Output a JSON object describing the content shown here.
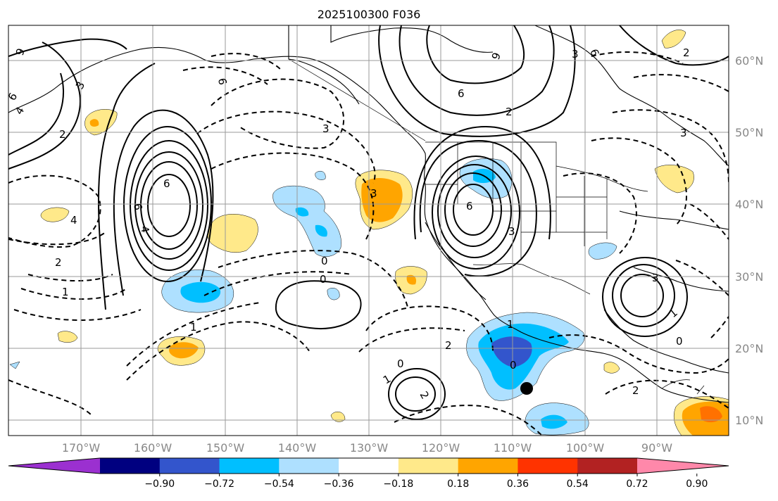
{
  "title": "2025100300 F036",
  "map": {
    "lon_labels": [
      "170°W",
      "160°W",
      "150°W",
      "140°W",
      "130°W",
      "120°W",
      "110°W",
      "100°W",
      "90°W"
    ],
    "lat_labels": [
      "60°N",
      "50°N",
      "40°N",
      "30°N",
      "20°N",
      "10°N"
    ],
    "contour_labels": [
      "9",
      "3",
      "6",
      "4",
      "2",
      "6",
      "6",
      "4",
      "2",
      "1",
      "3",
      "3",
      "9",
      "6",
      "6",
      "3",
      "2",
      "0",
      "1",
      "2",
      "0",
      "1",
      "2",
      "0",
      "1",
      "0",
      "1",
      "3",
      "0",
      "2",
      "2",
      "3",
      "4",
      "6",
      "3",
      "6"
    ],
    "marker": "black-dot",
    "colors": {
      "gridline": "#9a9a9a",
      "coastline": "#000000",
      "contour": "#000000"
    }
  },
  "colorbar": {
    "tick_labels": [
      "−0.90",
      "−0.72",
      "−0.54",
      "−0.36",
      "−0.18",
      "0.18",
      "0.36",
      "0.54",
      "0.72",
      "0.90"
    ],
    "colors": [
      "#9b30d0",
      "#000080",
      "#3355cc",
      "#00bfff",
      "#aee0ff",
      "#ffffff",
      "#ffe98a",
      "#ffa500",
      "#ff3300",
      "#b22222",
      "#ff88aa"
    ],
    "extend": "both"
  }
}
